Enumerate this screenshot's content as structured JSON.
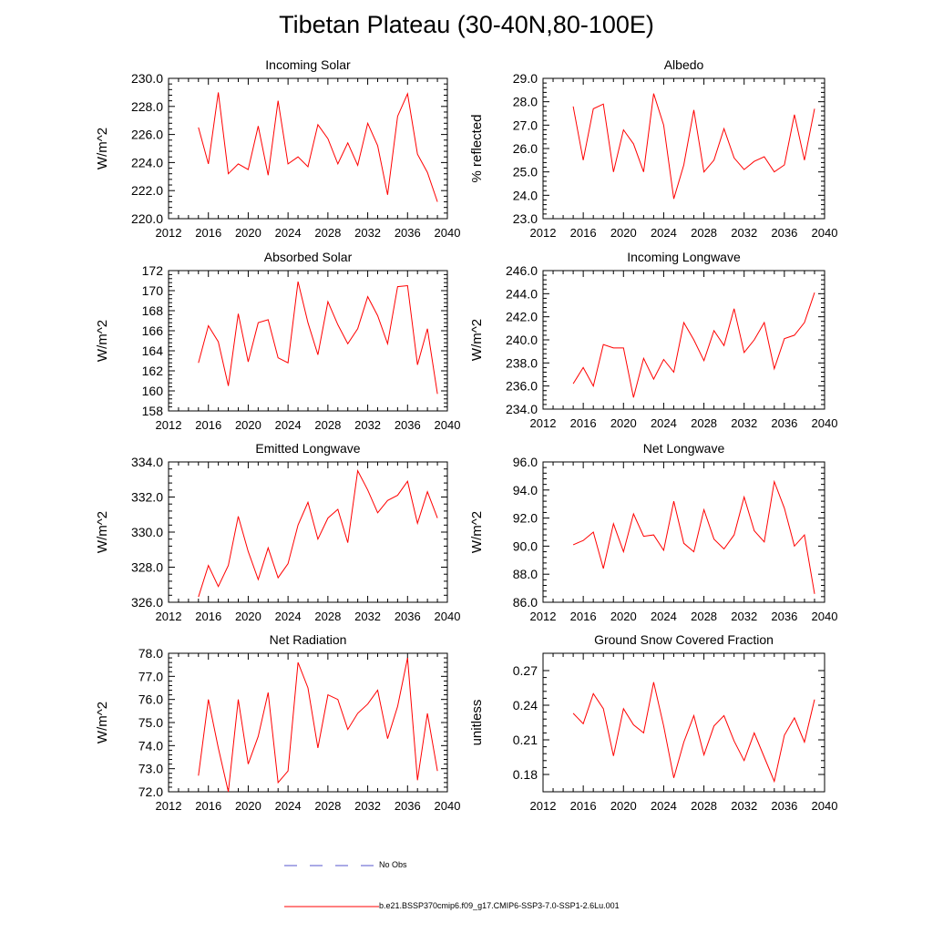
{
  "figure": {
    "title": "Tibetan Plateau (30-40N,80-100E)",
    "legend": {
      "no_obs_label": "No Obs",
      "model_label": "b.e21.BSSP370cmip6.f09_g17.CMIP6-SSP3-7.0-SSP1-2.6Lu.001",
      "no_obs_color": "#5555cc",
      "model_color": "#ff0000"
    }
  },
  "chart_data": [
    {
      "type": "line",
      "title": "Incoming Solar",
      "ylabel": "W/m^2",
      "xlim": [
        2012,
        2040
      ],
      "xticks": [
        "2012",
        "2016",
        "2020",
        "2024",
        "2028",
        "2032",
        "2036",
        "2040"
      ],
      "ylim": [
        220,
        230
      ],
      "yticks": [
        "220.0",
        "222.0",
        "224.0",
        "226.0",
        "228.0",
        "230.0"
      ],
      "x": [
        2015,
        2016,
        2017,
        2018,
        2019,
        2020,
        2021,
        2022,
        2023,
        2024,
        2025,
        2026,
        2027,
        2028,
        2029,
        2030,
        2031,
        2032,
        2033,
        2034,
        2035,
        2036,
        2037,
        2038,
        2039
      ],
      "series": [
        {
          "values": [
            226.5,
            223.9,
            229.0,
            223.2,
            223.9,
            223.5,
            226.6,
            223.1,
            228.4,
            223.9,
            224.4,
            223.7,
            226.7,
            225.7,
            223.9,
            225.4,
            223.8,
            226.8,
            225.2,
            221.7,
            227.3,
            228.9,
            224.6,
            223.3,
            221.2
          ],
          "color": "#ff0000"
        }
      ]
    },
    {
      "type": "line",
      "title": "Albedo",
      "ylabel": "% reflected",
      "xlim": [
        2012,
        2040
      ],
      "xticks": [
        "2012",
        "2016",
        "2020",
        "2024",
        "2028",
        "2032",
        "2036",
        "2040"
      ],
      "ylim": [
        23,
        29
      ],
      "yticks": [
        "23.0",
        "24.0",
        "25.0",
        "26.0",
        "27.0",
        "28.0",
        "29.0"
      ],
      "x": [
        2015,
        2016,
        2017,
        2018,
        2019,
        2020,
        2021,
        2022,
        2023,
        2024,
        2025,
        2026,
        2027,
        2028,
        2029,
        2030,
        2031,
        2032,
        2033,
        2034,
        2035,
        2036,
        2037,
        2038,
        2039
      ],
      "series": [
        {
          "values": [
            27.8,
            25.5,
            27.7,
            27.9,
            25.0,
            26.8,
            26.2,
            25.0,
            28.35,
            27.0,
            23.85,
            25.3,
            27.65,
            25.0,
            25.5,
            26.85,
            25.6,
            25.1,
            25.45,
            25.65,
            25.0,
            25.3,
            27.45,
            25.5,
            27.7
          ],
          "color": "#ff0000"
        }
      ]
    },
    {
      "type": "line",
      "title": "Absorbed Solar",
      "ylabel": "W/m^2",
      "xlim": [
        2012,
        2040
      ],
      "xticks": [
        "2012",
        "2016",
        "2020",
        "2024",
        "2028",
        "2032",
        "2036",
        "2040"
      ],
      "ylim": [
        158,
        172
      ],
      "yticks": [
        "158",
        "160",
        "162",
        "164",
        "166",
        "168",
        "170",
        "172"
      ],
      "x": [
        2015,
        2016,
        2017,
        2018,
        2019,
        2020,
        2021,
        2022,
        2023,
        2024,
        2025,
        2026,
        2027,
        2028,
        2029,
        2030,
        2031,
        2032,
        2033,
        2034,
        2035,
        2036,
        2037,
        2038,
        2039
      ],
      "series": [
        {
          "values": [
            162.8,
            166.5,
            164.9,
            160.5,
            167.7,
            162.9,
            166.8,
            167.1,
            163.3,
            162.8,
            170.9,
            166.8,
            163.6,
            168.9,
            166.6,
            164.7,
            166.2,
            169.4,
            167.5,
            164.7,
            170.4,
            170.5,
            162.6,
            166.2,
            159.7
          ],
          "color": "#ff0000"
        }
      ]
    },
    {
      "type": "line",
      "title": "Incoming Longwave",
      "ylabel": "W/m^2",
      "xlim": [
        2012,
        2040
      ],
      "xticks": [
        "2012",
        "2016",
        "2020",
        "2024",
        "2028",
        "2032",
        "2036",
        "2040"
      ],
      "ylim": [
        234,
        246
      ],
      "yticks": [
        "234.0",
        "236.0",
        "238.0",
        "240.0",
        "242.0",
        "244.0",
        "246.0"
      ],
      "x": [
        2015,
        2016,
        2017,
        2018,
        2019,
        2020,
        2021,
        2022,
        2023,
        2024,
        2025,
        2026,
        2027,
        2028,
        2029,
        2030,
        2031,
        2032,
        2033,
        2034,
        2035,
        2036,
        2037,
        2038,
        2039
      ],
      "series": [
        {
          "values": [
            236.2,
            237.6,
            236.0,
            239.6,
            239.3,
            239.3,
            235.0,
            238.4,
            236.6,
            238.3,
            237.2,
            241.5,
            240.0,
            238.2,
            240.8,
            239.5,
            242.7,
            238.9,
            240.0,
            241.5,
            237.5,
            240.1,
            240.4,
            241.5,
            244.1
          ],
          "color": "#ff0000"
        }
      ]
    },
    {
      "type": "line",
      "title": "Emitted Longwave",
      "ylabel": "W/m^2",
      "xlim": [
        2012,
        2040
      ],
      "xticks": [
        "2012",
        "2016",
        "2020",
        "2024",
        "2028",
        "2032",
        "2036",
        "2040"
      ],
      "ylim": [
        326,
        334
      ],
      "yticks": [
        "326.0",
        "328.0",
        "330.0",
        "332.0",
        "334.0"
      ],
      "x": [
        2015,
        2016,
        2017,
        2018,
        2019,
        2020,
        2021,
        2022,
        2023,
        2024,
        2025,
        2026,
        2027,
        2028,
        2029,
        2030,
        2031,
        2032,
        2033,
        2034,
        2035,
        2036,
        2037,
        2038,
        2039
      ],
      "series": [
        {
          "values": [
            326.3,
            328.1,
            326.9,
            328.1,
            330.9,
            328.9,
            327.3,
            329.1,
            327.4,
            328.2,
            330.4,
            331.7,
            329.6,
            330.8,
            331.3,
            329.4,
            333.5,
            332.4,
            331.1,
            331.8,
            332.1,
            332.9,
            330.5,
            332.3,
            330.8
          ],
          "color": "#ff0000"
        }
      ]
    },
    {
      "type": "line",
      "title": "Net Longwave",
      "ylabel": "W/m^2",
      "xlim": [
        2012,
        2040
      ],
      "xticks": [
        "2012",
        "2016",
        "2020",
        "2024",
        "2028",
        "2032",
        "2036",
        "2040"
      ],
      "ylim": [
        86,
        96
      ],
      "yticks": [
        "86.0",
        "88.0",
        "90.0",
        "92.0",
        "94.0",
        "96.0"
      ],
      "x": [
        2015,
        2016,
        2017,
        2018,
        2019,
        2020,
        2021,
        2022,
        2023,
        2024,
        2025,
        2026,
        2027,
        2028,
        2029,
        2030,
        2031,
        2032,
        2033,
        2034,
        2035,
        2036,
        2037,
        2038,
        2039
      ],
      "series": [
        {
          "values": [
            90.1,
            90.4,
            91.0,
            88.4,
            91.6,
            89.6,
            92.3,
            90.7,
            90.8,
            89.7,
            93.2,
            90.2,
            89.6,
            92.6,
            90.5,
            89.8,
            90.8,
            93.5,
            91.1,
            90.3,
            94.6,
            92.7,
            90.0,
            90.8,
            86.6
          ],
          "color": "#ff0000"
        }
      ]
    },
    {
      "type": "line",
      "title": "Net Radiation",
      "ylabel": "W/m^2",
      "xlim": [
        2012,
        2040
      ],
      "xticks": [
        "2012",
        "2016",
        "2020",
        "2024",
        "2028",
        "2032",
        "2036",
        "2040"
      ],
      "ylim": [
        72,
        78
      ],
      "yticks": [
        "72.0",
        "73.0",
        "74.0",
        "75.0",
        "76.0",
        "77.0",
        "78.0"
      ],
      "x": [
        2015,
        2016,
        2017,
        2018,
        2019,
        2020,
        2021,
        2022,
        2023,
        2024,
        2025,
        2026,
        2027,
        2028,
        2029,
        2030,
        2031,
        2032,
        2033,
        2034,
        2035,
        2036,
        2037,
        2038,
        2039
      ],
      "series": [
        {
          "values": [
            72.7,
            76.0,
            73.9,
            72.0,
            76.0,
            73.2,
            74.4,
            76.3,
            72.4,
            72.9,
            77.6,
            76.5,
            73.9,
            76.2,
            76.0,
            74.7,
            75.4,
            75.8,
            76.4,
            74.3,
            75.7,
            77.8,
            72.5,
            75.4,
            72.9
          ],
          "color": "#ff0000"
        }
      ]
    },
    {
      "type": "line",
      "title": "Ground Snow Covered Fraction",
      "ylabel": "unitless",
      "xlim": [
        2012,
        2040
      ],
      "xticks": [
        "2012",
        "2016",
        "2020",
        "2024",
        "2028",
        "2032",
        "2036",
        "2040"
      ],
      "ylim": [
        0.165,
        0.285
      ],
      "yticks": [
        "0.18",
        "0.21",
        "0.24",
        "0.27"
      ],
      "ytick_values": [
        0.18,
        0.21,
        0.24,
        0.27
      ],
      "x": [
        2015,
        2016,
        2017,
        2018,
        2019,
        2020,
        2021,
        2022,
        2023,
        2024,
        2025,
        2026,
        2027,
        2028,
        2029,
        2030,
        2031,
        2032,
        2033,
        2034,
        2035,
        2036,
        2037,
        2038,
        2039
      ],
      "series": [
        {
          "values": [
            0.233,
            0.224,
            0.25,
            0.237,
            0.196,
            0.237,
            0.223,
            0.216,
            0.26,
            0.222,
            0.177,
            0.208,
            0.231,
            0.197,
            0.222,
            0.231,
            0.209,
            0.192,
            0.216,
            0.195,
            0.174,
            0.214,
            0.229,
            0.208,
            0.245
          ],
          "color": "#ff0000"
        }
      ]
    }
  ]
}
